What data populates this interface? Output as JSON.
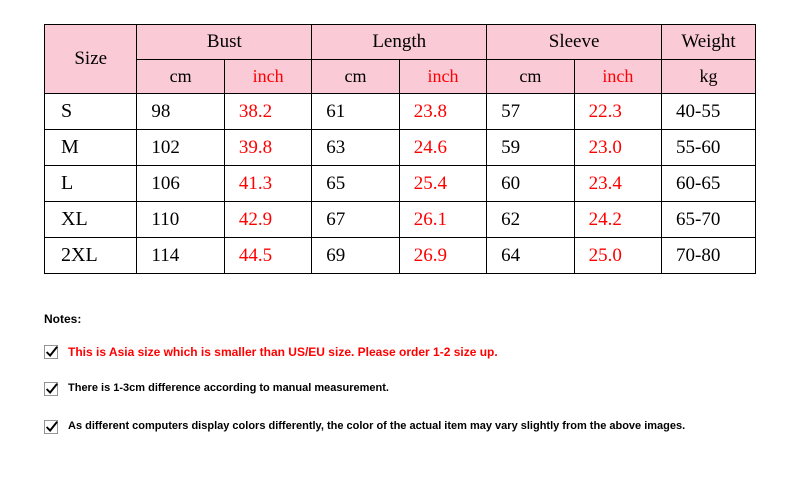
{
  "table": {
    "header_bg": "#facad7",
    "inch_color": "#ff0000",
    "border_color": "#000000",
    "columns": {
      "size": "Size",
      "bust": "Bust",
      "length": "Length",
      "sleeve": "Sleeve",
      "weight": "Weight",
      "cm": "cm",
      "inch": "inch",
      "kg": "kg"
    },
    "rows": [
      {
        "size": "S",
        "bust_cm": "98",
        "bust_in": "38.2",
        "len_cm": "61",
        "len_in": "23.8",
        "slv_cm": "57",
        "slv_in": "22.3",
        "weight": "40-55"
      },
      {
        "size": "M",
        "bust_cm": "102",
        "bust_in": "39.8",
        "len_cm": "63",
        "len_in": "24.6",
        "slv_cm": "59",
        "slv_in": "23.0",
        "weight": "55-60"
      },
      {
        "size": "L",
        "bust_cm": "106",
        "bust_in": "41.3",
        "len_cm": "65",
        "len_in": "25.4",
        "slv_cm": "60",
        "slv_in": "23.4",
        "weight": "60-65"
      },
      {
        "size": "XL",
        "bust_cm": "110",
        "bust_in": "42.9",
        "len_cm": "67",
        "len_in": "26.1",
        "slv_cm": "62",
        "slv_in": "24.2",
        "weight": "65-70"
      },
      {
        "size": "2XL",
        "bust_cm": "114",
        "bust_in": "44.5",
        "len_cm": "69",
        "len_in": "26.9",
        "slv_cm": "64",
        "slv_in": "25.0",
        "weight": "70-80"
      }
    ]
  },
  "notes": {
    "title": "Notes:",
    "items": [
      {
        "text": "This is Asia size which is smaller than US/EU size. Please order 1-2 size up.",
        "red": true
      },
      {
        "text": "There is 1-3cm difference according to manual measurement.",
        "red": false
      },
      {
        "text": "As different computers display colors differently, the color of the actual item may vary slightly from the above images.",
        "red": false
      }
    ]
  }
}
